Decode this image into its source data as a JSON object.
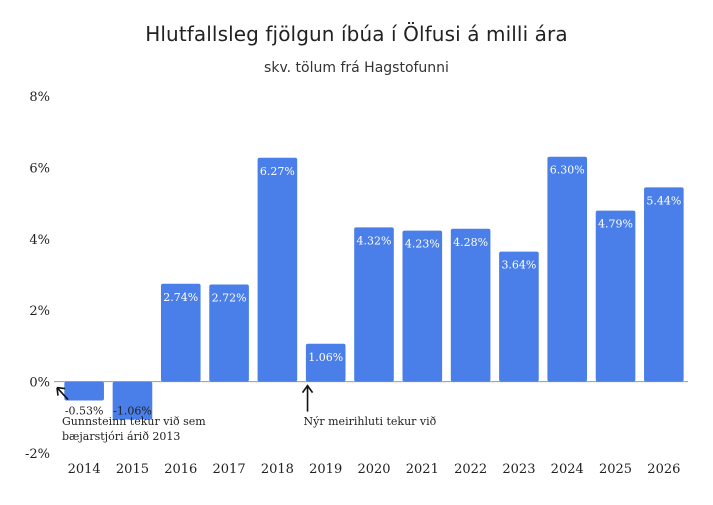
{
  "chart_data": {
    "type": "bar",
    "title": "Hlutfallsleg fjölgun íbúa í Ölfusi á milli ára",
    "subtitle": "skv. tölum frá Hagstofunni",
    "categories": [
      "2014",
      "2015",
      "2016",
      "2017",
      "2018",
      "2019",
      "2020",
      "2021",
      "2022",
      "2023",
      "2024",
      "2025",
      "2026"
    ],
    "values": [
      -0.53,
      -1.06,
      2.74,
      2.72,
      6.27,
      1.06,
      4.32,
      4.23,
      4.28,
      3.64,
      6.3,
      4.79,
      5.44
    ],
    "data_labels": [
      "-0.53%",
      "-1.06%",
      "2.74%",
      "2.72%",
      "6.27%",
      "1.06%",
      "4.32%",
      "4.23%",
      "4.28%",
      "3.64%",
      "6.30%",
      "4.79%",
      "5.44%"
    ],
    "ylim": [
      -2,
      8
    ],
    "yticks": [
      -2,
      0,
      2,
      4,
      6,
      8
    ],
    "ytick_labels": [
      "-2%",
      "0%",
      "2%",
      "4%",
      "6%",
      "8%"
    ],
    "grid": false,
    "bar_color": "#4a7ee8",
    "annotations": [
      {
        "text_lines": [
          "Gunnsteinn tekur við sem",
          "bæjarstjóri árið 2013"
        ],
        "target_category": "2014"
      },
      {
        "text_lines": [
          "Nýr meirihluti tekur við"
        ],
        "target_category": "2019"
      }
    ]
  }
}
